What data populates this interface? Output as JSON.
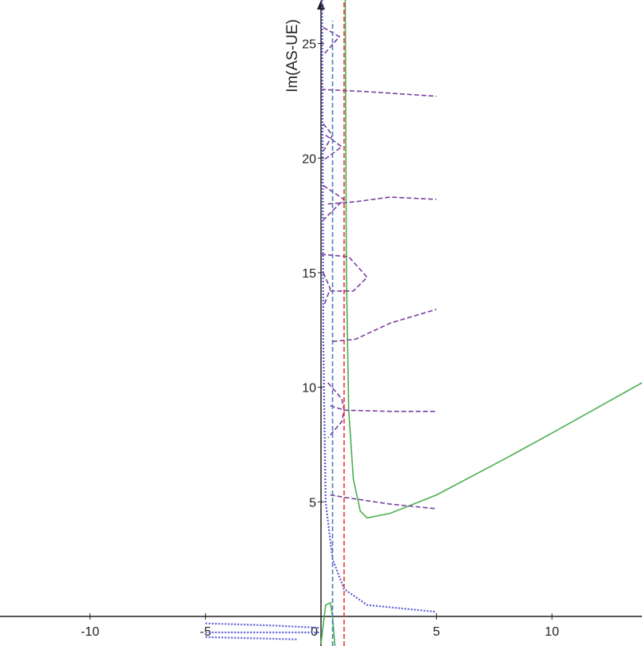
{
  "chart_data": {
    "type": "line",
    "y_label": "Im(AS-UE)",
    "xlim": [
      -13.9,
      13.9
    ],
    "ylim": [
      -1.29,
      26.9
    ],
    "xticks": [
      -10,
      -5,
      0,
      5,
      10
    ],
    "yticks": [
      5,
      10,
      15,
      20,
      25
    ],
    "series": [
      {
        "color": "#4caf50",
        "style": "solid",
        "x": [
          1.05,
          1.1,
          1.2,
          1.4,
          1.7,
          2,
          3,
          5,
          8,
          10,
          13.9
        ],
        "values": [
          26.9,
          15,
          9,
          6,
          4.6,
          4.3,
          4.5,
          5.3,
          6.9,
          8,
          10.2
        ]
      },
      {
        "color": "#4caf50",
        "style": "solid",
        "x": [
          0,
          0.2,
          0.4,
          0.5,
          0.6
        ],
        "values": [
          -1.2,
          0.5,
          0.6,
          0,
          -1.29
        ]
      },
      {
        "color": "#7b3fa0",
        "style": "dashed",
        "x": [
          0.4,
          1,
          3,
          5
        ],
        "values": [
          5.3,
          5.2,
          4.9,
          4.7
        ]
      },
      {
        "color": "#7b3fa0",
        "style": "dashed",
        "x": [
          0.4,
          1,
          3,
          5
        ],
        "values": [
          9.2,
          9.0,
          8.95,
          8.95
        ]
      },
      {
        "color": "#7b3fa0",
        "style": "dashed",
        "x": [
          0.5,
          1.5,
          3,
          5
        ],
        "values": [
          12,
          12.1,
          12.8,
          13.4
        ]
      },
      {
        "color": "#7b3fa0",
        "style": "dashed",
        "x": [
          0.3,
          1.5,
          3,
          5
        ],
        "values": [
          18,
          18.1,
          18.3,
          18.2
        ]
      },
      {
        "color": "#7b3fa0",
        "style": "dashed",
        "x": [
          0,
          2,
          5
        ],
        "values": [
          23,
          22.9,
          22.7
        ]
      },
      {
        "color": "#7b3fa0",
        "style": "dashed",
        "x": [
          0.3,
          0.9,
          1,
          0.9,
          0.3
        ],
        "values": [
          10.2,
          9.5,
          9,
          8.5,
          7.8
        ]
      },
      {
        "color": "#7b3fa0",
        "style": "dashed",
        "x": [
          0,
          1.2,
          2,
          1.4,
          0.4
        ],
        "values": [
          15.8,
          15.7,
          14.8,
          14.2,
          14.2
        ]
      },
      {
        "color": "#7b3fa0",
        "style": "dashed",
        "x": [
          0.1,
          0.4,
          0.1
        ],
        "values": [
          15,
          14.3,
          13.5
        ]
      },
      {
        "color": "#7b3fa0",
        "style": "dashed",
        "x": [
          0.1,
          1,
          0.1
        ],
        "values": [
          18.8,
          18.2,
          17.3
        ]
      },
      {
        "color": "#7b3fa0",
        "style": "dashed",
        "x": [
          0.1,
          0.5,
          0.1
        ],
        "values": [
          21.5,
          21,
          20.3
        ]
      },
      {
        "color": "#7b3fa0",
        "style": "dashed",
        "x": [
          0.2,
          0.9,
          0.1
        ],
        "values": [
          21,
          20.5,
          19.9
        ]
      },
      {
        "color": "#7b3fa0",
        "style": "dashed",
        "x": [
          0.1,
          0.8,
          0.1
        ],
        "values": [
          25.7,
          25.3,
          24.5
        ]
      },
      {
        "color": "#5b5bd6",
        "style": "dotted",
        "x": [
          0.05,
          0.1,
          0.2,
          0.5,
          1,
          2,
          5
        ],
        "values": [
          26.9,
          12,
          5,
          2.5,
          1.2,
          0.5,
          0.2
        ]
      },
      {
        "color": "#5b5bd6",
        "style": "dotted",
        "x": [
          -5,
          -2,
          0
        ],
        "values": [
          -0.3,
          -0.4,
          -0.5
        ]
      },
      {
        "color": "#5b5bd6",
        "style": "dotted",
        "x": [
          -5,
          0
        ],
        "values": [
          -0.7,
          -0.7
        ]
      },
      {
        "color": "#5b5bd6",
        "style": "dotted",
        "x": [
          -5,
          -1
        ],
        "values": [
          -0.9,
          -1.0
        ]
      },
      {
        "color": "#4a7fc1",
        "style": "dashed",
        "x": [
          0.5,
          0.5
        ],
        "values": [
          -1.29,
          26
        ]
      },
      {
        "color": "#e53935",
        "style": "dashed",
        "x": [
          1,
          1
        ],
        "values": [
          -1.29,
          26.9
        ]
      }
    ]
  }
}
